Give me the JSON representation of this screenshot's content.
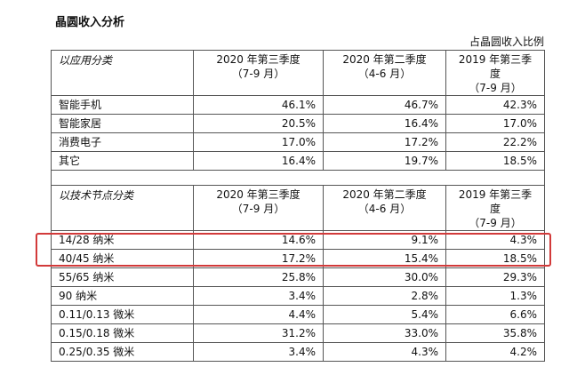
{
  "title": "晶圆收入分析",
  "unit_label": "占晶圆收入比例",
  "section1": {
    "header_label": "以应用分类",
    "columns": [
      {
        "line1": "2020 年第三季度",
        "line2": "（7-9 月）"
      },
      {
        "line1": "2020 年第二季度",
        "line2": "（4-6 月）"
      },
      {
        "line1": "2019 年第三季度",
        "line2": "（7-9 月）"
      }
    ],
    "rows": [
      {
        "label": "智能手机",
        "values": [
          "46.1%",
          "46.7%",
          "42.3%"
        ]
      },
      {
        "label": "智能家居",
        "values": [
          "20.5%",
          "16.4%",
          "17.0%"
        ]
      },
      {
        "label": "消费电子",
        "values": [
          "17.0%",
          "17.2%",
          "22.2%"
        ]
      },
      {
        "label": "其它",
        "values": [
          "16.4%",
          "19.7%",
          "18.5%"
        ]
      }
    ]
  },
  "section2": {
    "header_label": "以技术节点分类",
    "columns": [
      {
        "line1": "2020 年第三季度",
        "line2": "（7-9 月）"
      },
      {
        "line1": "2020 年第二季度",
        "line2": "（4-6 月）"
      },
      {
        "line1": "2019 年第三季度",
        "line2": "（7-9 月）"
      }
    ],
    "rows": [
      {
        "label": "14/28 纳米",
        "values": [
          "14.6%",
          "9.1%",
          "4.3%"
        ]
      },
      {
        "label": "40/45 纳米",
        "values": [
          "17.2%",
          "15.4%",
          "18.5%"
        ]
      },
      {
        "label": "55/65 纳米",
        "values": [
          "25.8%",
          "30.0%",
          "29.3%"
        ]
      },
      {
        "label": "90 纳米",
        "values": [
          "3.4%",
          "2.8%",
          "1.3%"
        ]
      },
      {
        "label": "0.11/0.13 微米",
        "values": [
          "4.4%",
          "5.4%",
          "6.6%"
        ]
      },
      {
        "label": "0.15/0.18 微米",
        "values": [
          "31.2%",
          "33.0%",
          "35.8%"
        ]
      },
      {
        "label": "0.25/0.35 微米",
        "values": [
          "3.4%",
          "4.3%",
          "4.2%"
        ]
      }
    ]
  },
  "highlight_color": "#d23a3a"
}
